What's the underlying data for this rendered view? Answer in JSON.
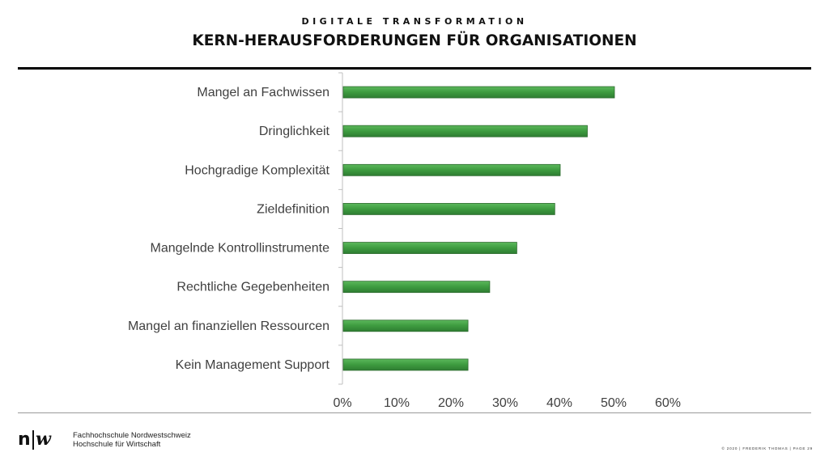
{
  "header": {
    "kicker": "DIGITALE TRANSFORMATION",
    "title": "KERN-HERAUSFORDERUNGEN FÜR ORGANISATIONEN"
  },
  "chart_data": {
    "type": "bar",
    "orientation": "horizontal",
    "categories": [
      "Mangel an Fachwissen",
      "Dringlichkeit",
      "Hochgradige Komplexität",
      "Zieldefinition",
      "Mangelnde Kontrollinstrumente",
      "Rechtliche Gegebenheiten",
      "Mangel an finanziellen Ressourcen",
      "Kein Management Support"
    ],
    "values": [
      50,
      45,
      40,
      39,
      32,
      27,
      23,
      23
    ],
    "xlim": [
      0,
      60
    ],
    "ticks": [
      "0%",
      "10%",
      "20%",
      "30%",
      "40%",
      "50%",
      "60%"
    ],
    "grid": false,
    "bar_color": "#3d9b3f"
  },
  "footer": {
    "logo_text": "n|w",
    "institution_line1": "Fachhochschule Nordwestschweiz",
    "institution_line2": "Hochschule für Wirtschaft",
    "copyright": "© 2020 | FREDERIK THOMAS | PAGE",
    "page_number": "29"
  }
}
